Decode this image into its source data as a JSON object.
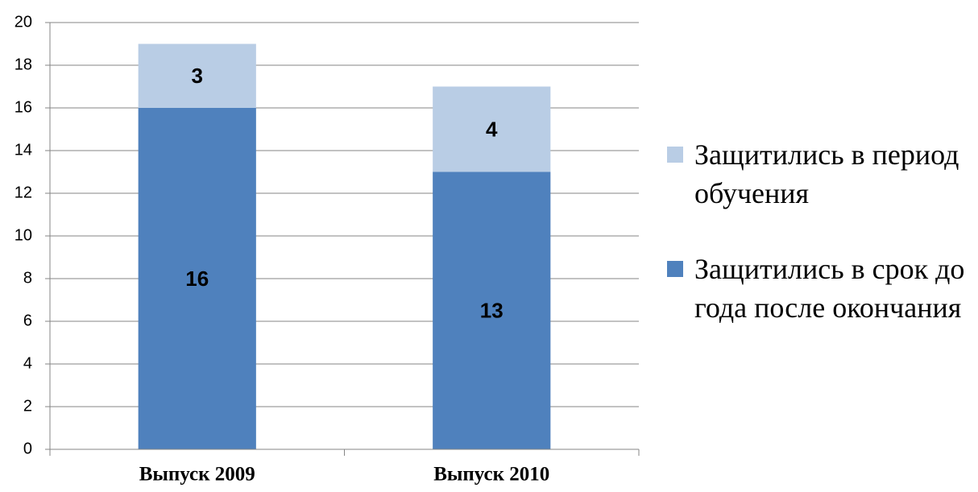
{
  "chart_data": {
    "type": "stacked-bar",
    "categories": [
      "Выпуск 2009",
      "Выпуск 2010"
    ],
    "series": [
      {
        "name": "Защитились в срок до года после окончания",
        "color": "#4f81bd",
        "values": [
          16,
          13
        ]
      },
      {
        "name": "Защитились в период обучения",
        "color": "#b9cde5",
        "values": [
          3,
          4
        ]
      }
    ],
    "ylim": [
      0,
      20
    ],
    "yticks": [
      0,
      2,
      4,
      6,
      8,
      10,
      12,
      14,
      16,
      18,
      20
    ],
    "grid": true,
    "legend": "right"
  }
}
